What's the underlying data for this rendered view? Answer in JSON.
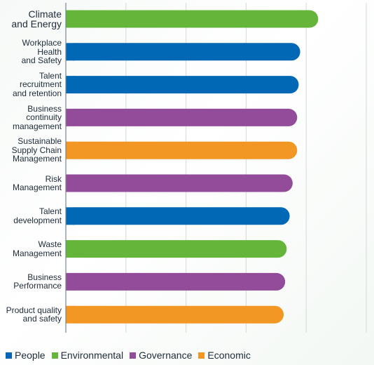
{
  "chart_data": {
    "type": "bar",
    "orientation": "horizontal",
    "title": "",
    "xlabel": "",
    "ylabel": "",
    "xlim": [
      0,
      100
    ],
    "grid": true,
    "legend_placement": "bottom-left",
    "categories": [
      "Climate\nand Energy",
      "Workplace\nHealth\nand Safety",
      "Talent\nrecruitment\nand retention",
      "Business\ncontinuity\nmanagement",
      "Sustainable\nSupply Chain\nManagement",
      "Risk\nManagement",
      "Talent\ndevelopment",
      "Waste\nManagement",
      "Business\nPerformance",
      "Product quality\nand safety"
    ],
    "values": [
      84,
      78,
      77.5,
      77,
      77,
      75.5,
      74.5,
      73.5,
      73,
      72.5
    ],
    "groups": [
      "Environmental",
      "People",
      "People",
      "Governance",
      "Economic",
      "Governance",
      "People",
      "Environmental",
      "Governance",
      "Economic"
    ],
    "legend": [
      {
        "name": "People",
        "color": "#0068b5"
      },
      {
        "name": "Environmental",
        "color": "#64b53a"
      },
      {
        "name": "Governance",
        "color": "#924c9a"
      },
      {
        "name": "Economic",
        "color": "#f39724"
      }
    ]
  }
}
